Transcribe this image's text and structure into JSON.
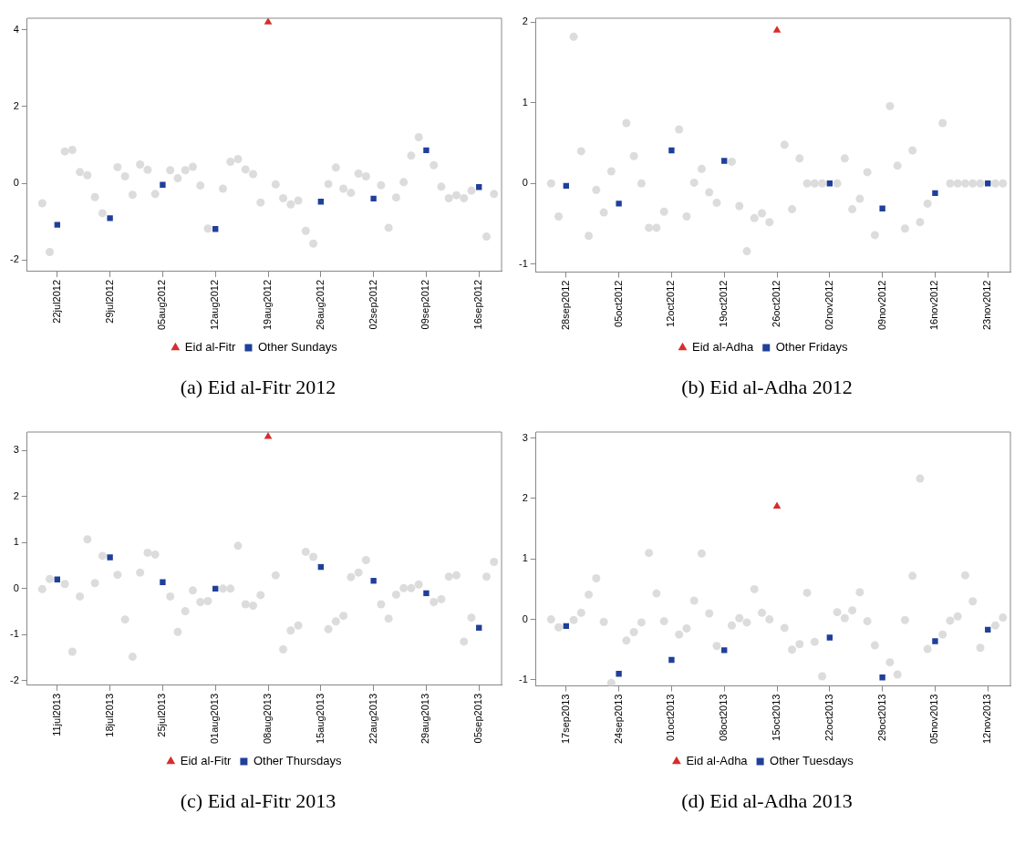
{
  "chart_data": [
    {
      "type": "scatter",
      "title": "(a) Eid al-Fitr 2012",
      "legend": "bottom",
      "x": [
        "2012-07-20",
        "2012-07-21",
        "2012-07-22",
        "2012-07-23",
        "2012-07-24",
        "2012-07-25",
        "2012-07-26",
        "2012-07-27",
        "2012-07-28",
        "2012-07-29",
        "2012-07-30",
        "2012-07-31",
        "2012-08-01",
        "2012-08-02",
        "2012-08-03",
        "2012-08-04",
        "2012-08-05",
        "2012-08-06",
        "2012-08-07",
        "2012-08-08",
        "2012-08-09",
        "2012-08-10",
        "2012-08-11",
        "2012-08-12",
        "2012-08-13",
        "2012-08-14",
        "2012-08-15",
        "2012-08-16",
        "2012-08-17",
        "2012-08-18",
        "2012-08-19",
        "2012-08-20",
        "2012-08-21",
        "2012-08-22",
        "2012-08-23",
        "2012-08-24",
        "2012-08-25",
        "2012-08-26",
        "2012-08-27",
        "2012-08-28",
        "2012-08-29",
        "2012-08-30",
        "2012-08-31",
        "2012-09-01",
        "2012-09-02",
        "2012-09-03",
        "2012-09-04",
        "2012-09-05",
        "2012-09-06",
        "2012-09-07",
        "2012-09-08",
        "2012-09-09",
        "2012-09-10",
        "2012-09-11",
        "2012-09-12",
        "2012-09-13",
        "2012-09-14",
        "2012-09-15",
        "2012-09-16",
        "2012-09-17",
        "2012-09-18"
      ],
      "series": [
        {
          "color": "#dcdcdc",
          "marker": "circle",
          "values": [
            -0.52,
            -1.79,
            null,
            0.83,
            0.87,
            0.29,
            0.21,
            -0.36,
            -0.78,
            null,
            0.42,
            0.18,
            -0.3,
            0.49,
            0.35,
            -0.28,
            null,
            0.34,
            0.13,
            0.34,
            0.43,
            -0.06,
            -1.18,
            null,
            -0.14,
            0.56,
            0.63,
            0.36,
            0.24,
            -0.5,
            null,
            -0.03,
            -0.39,
            -0.55,
            -0.45,
            -1.24,
            -1.57,
            null,
            -0.02,
            0.41,
            -0.14,
            -0.25,
            0.25,
            0.18,
            null,
            -0.05,
            -1.16,
            -0.37,
            0.03,
            0.72,
            1.2,
            null,
            0.47,
            -0.09,
            -0.39,
            -0.31,
            -0.39,
            -0.19,
            null,
            -1.39,
            -0.28
          ]
        },
        {
          "name": "Eid al-Fitr",
          "color": "#d62d2d",
          "marker": "triangle",
          "values": [
            null,
            null,
            null,
            null,
            null,
            null,
            null,
            null,
            null,
            null,
            null,
            null,
            null,
            null,
            null,
            null,
            null,
            null,
            null,
            null,
            null,
            null,
            null,
            null,
            null,
            null,
            null,
            null,
            null,
            null,
            4.2,
            null,
            null,
            null,
            null,
            null,
            null,
            null,
            null,
            null,
            null,
            null,
            null,
            null,
            null,
            null,
            null,
            null,
            null,
            null,
            null,
            null,
            null,
            null,
            null,
            null,
            null,
            null,
            null,
            null,
            null
          ]
        },
        {
          "name": "Other Sundays",
          "color": "#1f3f9a",
          "marker": "square",
          "values": [
            null,
            null,
            -1.08,
            null,
            null,
            null,
            null,
            null,
            null,
            -0.91,
            null,
            null,
            null,
            null,
            null,
            null,
            -0.04,
            null,
            null,
            null,
            null,
            null,
            null,
            -1.19,
            null,
            null,
            null,
            null,
            null,
            null,
            null,
            null,
            null,
            null,
            null,
            null,
            null,
            -0.48,
            null,
            null,
            null,
            null,
            null,
            null,
            -0.4,
            null,
            null,
            null,
            null,
            null,
            null,
            0.86,
            null,
            null,
            null,
            null,
            null,
            null,
            -0.1,
            null,
            null
          ]
        }
      ],
      "xlim": [
        "2012-07-18",
        "2012-09-19"
      ],
      "xticks": [
        {
          "value": "2012-07-22",
          "label": "22jul2012"
        },
        {
          "value": "2012-07-29",
          "label": "29jul2012"
        },
        {
          "value": "2012-08-05",
          "label": "05aug2012"
        },
        {
          "value": "2012-08-12",
          "label": "12aug2012"
        },
        {
          "value": "2012-08-19",
          "label": "19aug2012"
        },
        {
          "value": "2012-08-26",
          "label": "26aug2012"
        },
        {
          "value": "2012-09-02",
          "label": "02sep2012"
        },
        {
          "value": "2012-09-09",
          "label": "09sep2012"
        },
        {
          "value": "2012-09-16",
          "label": "16sep2012"
        }
      ],
      "ylim": [
        -2.3,
        4.3
      ],
      "yticks": [
        -2,
        0,
        2,
        4
      ]
    },
    {
      "type": "scatter",
      "title": "(b) Eid al-Adha 2012",
      "legend": "bottom",
      "x": [
        "2012-09-26",
        "2012-09-27",
        "2012-09-28",
        "2012-09-29",
        "2012-09-30",
        "2012-10-01",
        "2012-10-02",
        "2012-10-03",
        "2012-10-04",
        "2012-10-05",
        "2012-10-06",
        "2012-10-07",
        "2012-10-08",
        "2012-10-09",
        "2012-10-10",
        "2012-10-11",
        "2012-10-12",
        "2012-10-13",
        "2012-10-14",
        "2012-10-15",
        "2012-10-16",
        "2012-10-17",
        "2012-10-18",
        "2012-10-19",
        "2012-10-20",
        "2012-10-21",
        "2012-10-22",
        "2012-10-23",
        "2012-10-24",
        "2012-10-25",
        "2012-10-26",
        "2012-10-27",
        "2012-10-28",
        "2012-10-29",
        "2012-10-30",
        "2012-10-31",
        "2012-11-01",
        "2012-11-02",
        "2012-11-03",
        "2012-11-04",
        "2012-11-05",
        "2012-11-06",
        "2012-11-07",
        "2012-11-08",
        "2012-11-09",
        "2012-11-10",
        "2012-11-11",
        "2012-11-12",
        "2012-11-13",
        "2012-11-14",
        "2012-11-15",
        "2012-11-16",
        "2012-11-17",
        "2012-11-18",
        "2012-11-19",
        "2012-11-20",
        "2012-11-21",
        "2012-11-22",
        "2012-11-23",
        "2012-11-24",
        "2012-11-25"
      ],
      "series": [
        {
          "color": "#dcdcdc",
          "marker": "circle",
          "values": [
            0.0,
            -0.41,
            null,
            1.82,
            0.4,
            -0.65,
            -0.08,
            -0.36,
            0.15,
            null,
            0.75,
            0.34,
            0.0,
            -0.55,
            -0.55,
            -0.35,
            null,
            0.67,
            -0.41,
            0.01,
            0.18,
            -0.11,
            -0.24,
            null,
            0.27,
            -0.28,
            -0.84,
            -0.43,
            -0.37,
            -0.48,
            null,
            0.48,
            -0.32,
            0.31,
            0.0,
            0.0,
            0.0,
            null,
            0.0,
            0.31,
            -0.32,
            -0.19,
            0.14,
            -0.64,
            null,
            0.96,
            0.22,
            -0.56,
            0.41,
            -0.48,
            -0.25,
            null,
            0.75,
            0.0,
            0.0,
            0.0,
            0.0,
            0.0,
            null,
            0.0,
            0.0
          ]
        },
        {
          "name": "Eid al-Adha",
          "color": "#d62d2d",
          "marker": "triangle",
          "values": [
            null,
            null,
            null,
            null,
            null,
            null,
            null,
            null,
            null,
            null,
            null,
            null,
            null,
            null,
            null,
            null,
            null,
            null,
            null,
            null,
            null,
            null,
            null,
            null,
            null,
            null,
            null,
            null,
            null,
            null,
            1.9,
            null,
            null,
            null,
            null,
            null,
            null,
            null,
            null,
            null,
            null,
            null,
            null,
            null,
            null,
            null,
            null,
            null,
            null,
            null,
            null,
            null,
            null,
            null,
            null,
            null,
            null,
            null,
            null,
            null,
            null
          ]
        },
        {
          "name": "Other Fridays",
          "color": "#1f3f9a",
          "marker": "square",
          "values": [
            null,
            null,
            -0.03,
            null,
            null,
            null,
            null,
            null,
            null,
            -0.25,
            null,
            null,
            null,
            null,
            null,
            null,
            0.41,
            null,
            null,
            null,
            null,
            null,
            null,
            0.28,
            null,
            null,
            null,
            null,
            null,
            null,
            null,
            null,
            null,
            null,
            null,
            null,
            null,
            0.0,
            null,
            null,
            null,
            null,
            null,
            null,
            -0.31,
            null,
            null,
            null,
            null,
            null,
            null,
            -0.12,
            null,
            null,
            null,
            null,
            null,
            null,
            0.0,
            null,
            null
          ]
        }
      ],
      "xlim": [
        "2012-09-24",
        "2012-11-26"
      ],
      "xticks": [
        {
          "value": "2012-09-28",
          "label": "28sep2012"
        },
        {
          "value": "2012-10-05",
          "label": "05oct2012"
        },
        {
          "value": "2012-10-12",
          "label": "12oct2012"
        },
        {
          "value": "2012-10-19",
          "label": "19oct2012"
        },
        {
          "value": "2012-10-26",
          "label": "26oct2012"
        },
        {
          "value": "2012-11-02",
          "label": "02nov2012"
        },
        {
          "value": "2012-11-09",
          "label": "09nov2012"
        },
        {
          "value": "2012-11-16",
          "label": "16nov2012"
        },
        {
          "value": "2012-11-23",
          "label": "23nov2012"
        }
      ],
      "ylim": [
        -1.1,
        2.05
      ],
      "yticks": [
        -1,
        0,
        1,
        2
      ]
    },
    {
      "type": "scatter",
      "title": "(c) Eid al-Fitr 2013",
      "legend": "bottom",
      "x": [
        "2013-07-09",
        "2013-07-10",
        "2013-07-11",
        "2013-07-12",
        "2013-07-13",
        "2013-07-14",
        "2013-07-15",
        "2013-07-16",
        "2013-07-17",
        "2013-07-18",
        "2013-07-19",
        "2013-07-20",
        "2013-07-21",
        "2013-07-22",
        "2013-07-23",
        "2013-07-24",
        "2013-07-25",
        "2013-07-26",
        "2013-07-27",
        "2013-07-28",
        "2013-07-29",
        "2013-07-30",
        "2013-07-31",
        "2013-08-01",
        "2013-08-02",
        "2013-08-03",
        "2013-08-04",
        "2013-08-05",
        "2013-08-06",
        "2013-08-07",
        "2013-08-08",
        "2013-08-09",
        "2013-08-10",
        "2013-08-11",
        "2013-08-12",
        "2013-08-13",
        "2013-08-14",
        "2013-08-15",
        "2013-08-16",
        "2013-08-17",
        "2013-08-18",
        "2013-08-19",
        "2013-08-20",
        "2013-08-21",
        "2013-08-22",
        "2013-08-23",
        "2013-08-24",
        "2013-08-25",
        "2013-08-26",
        "2013-08-27",
        "2013-08-28",
        "2013-08-29",
        "2013-08-30",
        "2013-08-31",
        "2013-09-01",
        "2013-09-02",
        "2013-09-03",
        "2013-09-04",
        "2013-09-05",
        "2013-09-06",
        "2013-09-07"
      ],
      "series": [
        {
          "color": "#dcdcdc",
          "marker": "circle",
          "values": [
            -0.01,
            0.21,
            null,
            0.1,
            -1.37,
            -0.17,
            1.07,
            0.12,
            0.71,
            null,
            0.3,
            -0.67,
            -1.48,
            0.35,
            0.78,
            0.74,
            null,
            -0.17,
            -0.94,
            -0.49,
            -0.04,
            -0.29,
            -0.27,
            null,
            0.0,
            0.0,
            0.93,
            -0.34,
            -0.37,
            -0.14,
            null,
            0.29,
            -1.32,
            -0.91,
            -0.8,
            0.8,
            0.69,
            null,
            -0.88,
            -0.71,
            -0.59,
            0.25,
            0.35,
            0.62,
            null,
            -0.34,
            -0.65,
            -0.13,
            0.01,
            0.01,
            0.09,
            null,
            -0.29,
            -0.23,
            0.26,
            0.29,
            -1.15,
            -0.63,
            null,
            0.26,
            0.58
          ]
        },
        {
          "name": "Eid al-Fitr",
          "color": "#d62d2d",
          "marker": "triangle",
          "values": [
            null,
            null,
            null,
            null,
            null,
            null,
            null,
            null,
            null,
            null,
            null,
            null,
            null,
            null,
            null,
            null,
            null,
            null,
            null,
            null,
            null,
            null,
            null,
            null,
            null,
            null,
            null,
            null,
            null,
            null,
            3.3,
            null,
            null,
            null,
            null,
            null,
            null,
            null,
            null,
            null,
            null,
            null,
            null,
            null,
            null,
            null,
            null,
            null,
            null,
            null,
            null,
            null,
            null,
            null,
            null,
            null,
            null,
            null,
            null,
            null,
            null
          ]
        },
        {
          "name": "Other Thursdays",
          "color": "#1f3f9a",
          "marker": "square",
          "values": [
            null,
            null,
            0.2,
            null,
            null,
            null,
            null,
            null,
            null,
            0.68,
            null,
            null,
            null,
            null,
            null,
            null,
            0.14,
            null,
            null,
            null,
            null,
            null,
            null,
            0.0,
            null,
            null,
            null,
            null,
            null,
            null,
            null,
            null,
            null,
            null,
            null,
            null,
            null,
            0.47,
            null,
            null,
            null,
            null,
            null,
            null,
            0.17,
            null,
            null,
            null,
            null,
            null,
            null,
            -0.1,
            null,
            null,
            null,
            null,
            null,
            null,
            -0.85,
            null,
            null
          ]
        }
      ],
      "xlim": [
        "2013-07-07",
        "2013-09-08"
      ],
      "xticks": [
        {
          "value": "2013-07-11",
          "label": "11jul2013"
        },
        {
          "value": "2013-07-18",
          "label": "18jul2013"
        },
        {
          "value": "2013-07-25",
          "label": "25jul2013"
        },
        {
          "value": "2013-08-01",
          "label": "01aug2013"
        },
        {
          "value": "2013-08-08",
          "label": "08aug2013"
        },
        {
          "value": "2013-08-15",
          "label": "15aug2013"
        },
        {
          "value": "2013-08-22",
          "label": "22aug2013"
        },
        {
          "value": "2013-08-29",
          "label": "29aug2013"
        },
        {
          "value": "2013-09-05",
          "label": "05sep2013"
        }
      ],
      "ylim": [
        -2.1,
        3.4
      ],
      "yticks": [
        -2,
        -1,
        0,
        1,
        2,
        3
      ]
    },
    {
      "type": "scatter",
      "title": "(d) Eid al-Adha 2013",
      "legend": "bottom",
      "x": [
        "2013-09-15",
        "2013-09-16",
        "2013-09-17",
        "2013-09-18",
        "2013-09-19",
        "2013-09-20",
        "2013-09-21",
        "2013-09-22",
        "2013-09-23",
        "2013-09-24",
        "2013-09-25",
        "2013-09-26",
        "2013-09-27",
        "2013-09-28",
        "2013-09-29",
        "2013-09-30",
        "2013-10-01",
        "2013-10-02",
        "2013-10-03",
        "2013-10-04",
        "2013-10-05",
        "2013-10-06",
        "2013-10-07",
        "2013-10-08",
        "2013-10-09",
        "2013-10-10",
        "2013-10-11",
        "2013-10-12",
        "2013-10-13",
        "2013-10-14",
        "2013-10-15",
        "2013-10-16",
        "2013-10-17",
        "2013-10-18",
        "2013-10-19",
        "2013-10-20",
        "2013-10-21",
        "2013-10-22",
        "2013-10-23",
        "2013-10-24",
        "2013-10-25",
        "2013-10-26",
        "2013-10-27",
        "2013-10-28",
        "2013-10-29",
        "2013-10-30",
        "2013-10-31",
        "2013-11-01",
        "2013-11-02",
        "2013-11-03",
        "2013-11-04",
        "2013-11-05",
        "2013-11-06",
        "2013-11-07",
        "2013-11-08",
        "2013-11-09",
        "2013-11-10",
        "2013-11-11",
        "2013-11-12",
        "2013-11-13",
        "2013-11-14"
      ],
      "series": [
        {
          "color": "#dcdcdc",
          "marker": "circle",
          "values": [
            0.0,
            -0.13,
            null,
            -0.01,
            0.11,
            0.41,
            0.68,
            -0.04,
            -1.05,
            null,
            -0.35,
            -0.21,
            -0.05,
            1.1,
            0.43,
            -0.03,
            null,
            -0.25,
            -0.15,
            0.31,
            1.09,
            0.1,
            -0.44,
            null,
            -0.1,
            0.02,
            -0.05,
            0.5,
            0.11,
            0.0,
            null,
            -0.14,
            -0.5,
            -0.41,
            0.44,
            -0.37,
            -0.94,
            null,
            0.12,
            0.02,
            0.15,
            0.45,
            -0.03,
            -0.43,
            null,
            -0.71,
            -0.91,
            -0.01,
            0.72,
            2.33,
            -0.49,
            null,
            -0.25,
            -0.02,
            0.05,
            0.73,
            0.3,
            -0.47,
            null,
            -0.1,
            0.03
          ]
        },
        {
          "name": "Eid al-Adha",
          "color": "#d62d2d",
          "marker": "triangle",
          "values": [
            null,
            null,
            null,
            null,
            null,
            null,
            null,
            null,
            null,
            null,
            null,
            null,
            null,
            null,
            null,
            null,
            null,
            null,
            null,
            null,
            null,
            null,
            null,
            null,
            null,
            null,
            null,
            null,
            null,
            null,
            1.87,
            null,
            null,
            null,
            null,
            null,
            null,
            null,
            null,
            null,
            null,
            null,
            null,
            null,
            null,
            null,
            null,
            null,
            null,
            null,
            null,
            null,
            null,
            null,
            null,
            null,
            null,
            null,
            null,
            null,
            null
          ]
        },
        {
          "name": "Other Tuesdays",
          "color": "#1f3f9a",
          "marker": "square",
          "values": [
            null,
            null,
            -0.11,
            null,
            null,
            null,
            null,
            null,
            null,
            -0.9,
            null,
            null,
            null,
            null,
            null,
            null,
            -0.67,
            null,
            null,
            null,
            null,
            null,
            null,
            -0.51,
            null,
            null,
            null,
            null,
            null,
            null,
            null,
            null,
            null,
            null,
            null,
            null,
            null,
            -0.3,
            null,
            null,
            null,
            null,
            null,
            null,
            -0.96,
            null,
            null,
            null,
            null,
            null,
            null,
            -0.36,
            null,
            null,
            null,
            null,
            null,
            null,
            -0.17,
            null,
            null
          ]
        }
      ],
      "xlim": [
        "2013-09-13",
        "2013-11-15"
      ],
      "xticks": [
        {
          "value": "2013-09-17",
          "label": "17sep2013"
        },
        {
          "value": "2013-09-24",
          "label": "24sep2013"
        },
        {
          "value": "2013-10-01",
          "label": "01oct2013"
        },
        {
          "value": "2013-10-08",
          "label": "08oct2013"
        },
        {
          "value": "2013-10-15",
          "label": "15oct2013"
        },
        {
          "value": "2013-10-22",
          "label": "22oct2013"
        },
        {
          "value": "2013-10-29",
          "label": "29oct2013"
        },
        {
          "value": "2013-11-05",
          "label": "05nov2013"
        },
        {
          "value": "2013-11-12",
          "label": "12nov2013"
        }
      ],
      "ylim": [
        -1.1,
        3.1
      ],
      "yticks": [
        -1,
        0,
        1,
        2,
        3
      ]
    }
  ]
}
